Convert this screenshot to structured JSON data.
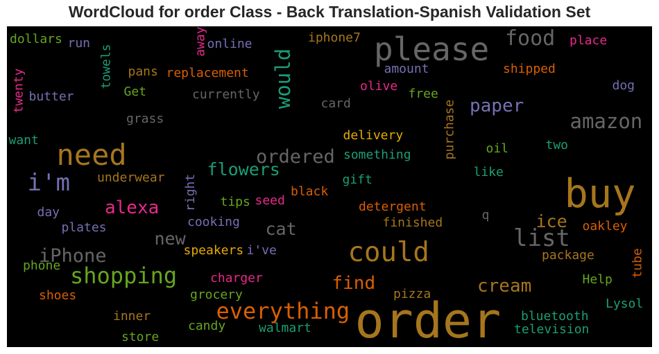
{
  "chart_data": {
    "type": "wordcloud",
    "title": "WordCloud for order Class - Back Translation-Spanish Validation Set",
    "background": "#000000",
    "palette": "Dark2",
    "words": [
      {
        "text": "order",
        "color": "#a6761d",
        "weight": 1.0
      },
      {
        "text": "buy",
        "color": "#a6761d",
        "weight": 0.82
      },
      {
        "text": "please",
        "color": "#666666",
        "weight": 0.66
      },
      {
        "text": "need",
        "color": "#a6761d",
        "weight": 0.6
      },
      {
        "text": "could",
        "color": "#a6761d",
        "weight": 0.56
      },
      {
        "text": "everything",
        "color": "#d95f02",
        "weight": 0.46
      },
      {
        "text": "list",
        "color": "#666666",
        "weight": 0.48
      },
      {
        "text": "i'm",
        "color": "#7570b3",
        "weight": 0.48
      },
      {
        "text": "shopping",
        "color": "#66a61e",
        "weight": 0.45
      },
      {
        "text": "would",
        "color": "#1b9e77",
        "weight": 0.42
      },
      {
        "text": "food",
        "color": "#666666",
        "weight": 0.43
      },
      {
        "text": "amazon",
        "color": "#666666",
        "weight": 0.42
      },
      {
        "text": "iPhone",
        "color": "#666666",
        "weight": 0.38
      },
      {
        "text": "ordered",
        "color": "#666666",
        "weight": 0.38
      },
      {
        "text": "find",
        "color": "#d95f02",
        "weight": 0.37
      },
      {
        "text": "cream",
        "color": "#a6761d",
        "weight": 0.37
      },
      {
        "text": "alexa",
        "color": "#e7298a",
        "weight": 0.37
      },
      {
        "text": "flowers",
        "color": "#1b9e77",
        "weight": 0.36
      },
      {
        "text": "paper",
        "color": "#7570b3",
        "weight": 0.37
      },
      {
        "text": "cat",
        "color": "#666666",
        "weight": 0.36
      },
      {
        "text": "new",
        "color": "#666666",
        "weight": 0.36
      },
      {
        "text": "ice",
        "color": "#a6761d",
        "weight": 0.36
      },
      {
        "text": "place",
        "color": "#e7298a",
        "weight": 0.26
      },
      {
        "text": "shipped",
        "color": "#d95f02",
        "weight": 0.26
      },
      {
        "text": "dog",
        "color": "#7570b3",
        "weight": 0.26
      },
      {
        "text": "oakley",
        "color": "#d95f02",
        "weight": 0.26
      },
      {
        "text": "tube",
        "color": "#d95f02",
        "weight": 0.26
      },
      {
        "text": "Help",
        "color": "#66a61e",
        "weight": 0.26
      },
      {
        "text": "Lysol",
        "color": "#1b9e77",
        "weight": 0.26
      },
      {
        "text": "package",
        "color": "#a6761d",
        "weight": 0.26
      },
      {
        "text": "bluetooth",
        "color": "#1b9e77",
        "weight": 0.26
      },
      {
        "text": "television",
        "color": "#1b9e77",
        "weight": 0.26
      },
      {
        "text": "pizza",
        "color": "#a6761d",
        "weight": 0.26
      },
      {
        "text": "walmart",
        "color": "#1b9e77",
        "weight": 0.26
      },
      {
        "text": "candy",
        "color": "#66a61e",
        "weight": 0.26
      },
      {
        "text": "store",
        "color": "#66a61e",
        "weight": 0.26
      },
      {
        "text": "inner",
        "color": "#a6761d",
        "weight": 0.26
      },
      {
        "text": "shoes",
        "color": "#d95f02",
        "weight": 0.26
      },
      {
        "text": "phone",
        "color": "#66a61e",
        "weight": 0.26
      },
      {
        "text": "grocery",
        "color": "#66a61e",
        "weight": 0.26
      },
      {
        "text": "charger",
        "color": "#e7298a",
        "weight": 0.26
      },
      {
        "text": "speakers",
        "color": "#e6ab02",
        "weight": 0.26
      },
      {
        "text": "i've",
        "color": "#7570b3",
        "weight": 0.26
      },
      {
        "text": "cooking",
        "color": "#7570b3",
        "weight": 0.26
      },
      {
        "text": "plates",
        "color": "#7570b3",
        "weight": 0.26
      },
      {
        "text": "day",
        "color": "#7570b3",
        "weight": 0.26
      },
      {
        "text": "underwear",
        "color": "#a6761d",
        "weight": 0.26
      },
      {
        "text": "want",
        "color": "#1b9e77",
        "weight": 0.26
      },
      {
        "text": "grass",
        "color": "#666666",
        "weight": 0.26
      },
      {
        "text": "butter",
        "color": "#7570b3",
        "weight": 0.26
      },
      {
        "text": "twenty",
        "color": "#e7298a",
        "weight": 0.26
      },
      {
        "text": "dollars",
        "color": "#66a61e",
        "weight": 0.26
      },
      {
        "text": "run",
        "color": "#7570b3",
        "weight": 0.26
      },
      {
        "text": "towels",
        "color": "#1b9e77",
        "weight": 0.26
      },
      {
        "text": "pans",
        "color": "#a6761d",
        "weight": 0.26
      },
      {
        "text": "Get",
        "color": "#66a61e",
        "weight": 0.26
      },
      {
        "text": "away",
        "color": "#e7298a",
        "weight": 0.26
      },
      {
        "text": "online",
        "color": "#7570b3",
        "weight": 0.26
      },
      {
        "text": "replacement",
        "color": "#d95f02",
        "weight": 0.26
      },
      {
        "text": "currently",
        "color": "#666666",
        "weight": 0.26
      },
      {
        "text": "iphone7",
        "color": "#a6761d",
        "weight": 0.26
      },
      {
        "text": "amount",
        "color": "#7570b3",
        "weight": 0.26
      },
      {
        "text": "olive",
        "color": "#e7298a",
        "weight": 0.26
      },
      {
        "text": "free",
        "color": "#66a61e",
        "weight": 0.26
      },
      {
        "text": "card",
        "color": "#666666",
        "weight": 0.26
      },
      {
        "text": "purchase",
        "color": "#a6761d",
        "weight": 0.26
      },
      {
        "text": "delivery",
        "color": "#e6ab02",
        "weight": 0.26
      },
      {
        "text": "something",
        "color": "#1b9e77",
        "weight": 0.26
      },
      {
        "text": "oil",
        "color": "#66a61e",
        "weight": 0.26
      },
      {
        "text": "two",
        "color": "#1b9e77",
        "weight": 0.26
      },
      {
        "text": "like",
        "color": "#1b9e77",
        "weight": 0.26
      },
      {
        "text": "gift",
        "color": "#1b9e77",
        "weight": 0.26
      },
      {
        "text": "black",
        "color": "#d95f02",
        "weight": 0.26
      },
      {
        "text": "seed",
        "color": "#e7298a",
        "weight": 0.26
      },
      {
        "text": "tips",
        "color": "#66a61e",
        "weight": 0.26
      },
      {
        "text": "right",
        "color": "#7570b3",
        "weight": 0.26
      },
      {
        "text": "detergent",
        "color": "#d95f02",
        "weight": 0.26
      },
      {
        "text": "finished",
        "color": "#a6761d",
        "weight": 0.26
      },
      {
        "text": "q",
        "color": "#666666",
        "weight": 0.26
      }
    ]
  }
}
